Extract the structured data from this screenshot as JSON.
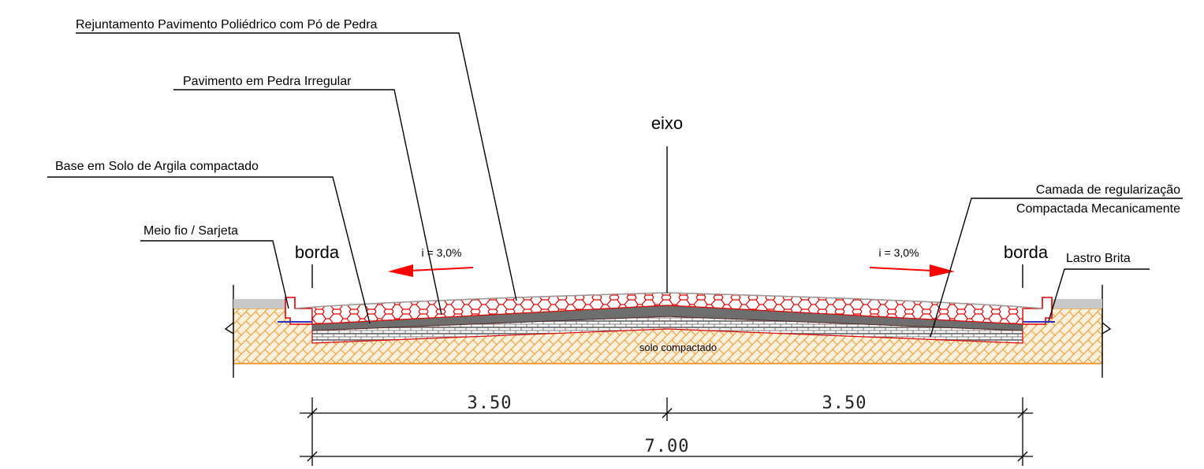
{
  "labels": {
    "rejuntamento": "Rejuntamento Pavimento Poliédrico com Pó de Pedra",
    "pavimento": "Pavimento em Pedra Irregular",
    "base": "Base em Solo de Argila compactado",
    "meio_fio": "Meio fio / Sarjeta",
    "camada_line1": "Camada de regularização",
    "camada_line2": "Compactada Mecanicamente",
    "lastro": "Lastro Brita",
    "eixo": "eixo",
    "borda_left": "borda",
    "borda_right": "borda",
    "slope_left": "i = 3,0%",
    "slope_right": "i = 3,0%",
    "solo": "solo compactado"
  },
  "dimensions": {
    "left_half": "3.50",
    "right_half": "3.50",
    "total": "7.00"
  },
  "colors": {
    "soil": "#f0a040",
    "soil_bg": "#fdf2e4",
    "stone_red": "#e00000",
    "asphalt_gray": "#6e6e6e",
    "light_gray": "#c8c8c8",
    "arrow_red": "#ff0000",
    "lastro_blue": "#3030c0"
  }
}
